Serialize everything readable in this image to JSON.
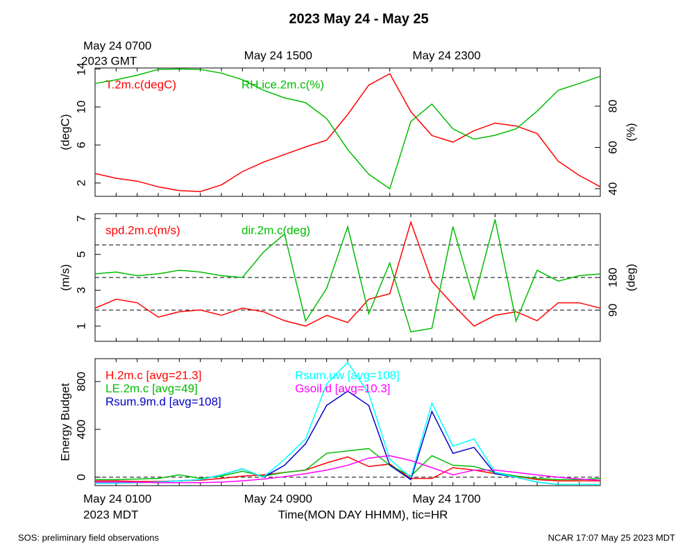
{
  "title": "2023 May 24 - May 25",
  "footer": {
    "left": "SOS: preliminary field observations",
    "right": "NCAR 17:07 May 25 2023 MDT"
  },
  "chart_data": [
    {
      "type": "line",
      "ylabel": "(degC)",
      "y2label": "(%)",
      "x": [
        "May 24 0100",
        "May 24 0200",
        "May 24 0300",
        "May 24 0400",
        "May 24 0500",
        "May 24 0600",
        "May 24 0700",
        "May 24 0800",
        "May 24 0900",
        "May 24 1000",
        "May 24 1100",
        "May 24 1200",
        "May 24 1300",
        "May 24 1400",
        "May 24 1500",
        "May 24 1600",
        "May 24 1700",
        "May 24 1800",
        "May 24 1900",
        "May 24 2000",
        "May 24 2100",
        "May 24 2200",
        "May 24 2300",
        "May 25 0000",
        "May 25 0100"
      ],
      "x2ticks": [
        {
          "value": "May 24 0100",
          "label": "May 24 0700"
        },
        {
          "value": "May 24 0900",
          "label": "May 24 1500"
        },
        {
          "value": "May 24 1700",
          "label": "May 24 2300"
        }
      ],
      "x2tick_sublabel": "2023 GMT",
      "ylim": [
        0.6,
        14.1
      ],
      "yticks": [
        2,
        6,
        10,
        14
      ],
      "y2lim": [
        36.3,
        98.5
      ],
      "y2ticks": [
        40,
        60,
        80
      ],
      "series": [
        {
          "name": "T.2m.c(degC)",
          "color": "#ff0000",
          "values": [
            3,
            2.5,
            2.2,
            1.6,
            1.2,
            1.1,
            1.8,
            3.2,
            4.2,
            5.0,
            5.8,
            6.5,
            9.2,
            12.3,
            13.5,
            9.5,
            7.0,
            6.3,
            7.5,
            8.3,
            8.0,
            7.2,
            4.3,
            2.8,
            1.6
          ]
        },
        {
          "name": "RH.ice.2m.c(%)",
          "color": "#00bb00",
          "axis": "y2",
          "values": [
            91,
            92.8,
            95,
            97.8,
            98,
            97.8,
            96,
            92.8,
            87.7,
            84,
            81.7,
            74,
            59,
            47,
            40,
            72.6,
            81,
            69,
            64,
            65.9,
            69,
            77.6,
            87.7,
            91,
            94.5
          ]
        }
      ]
    },
    {
      "type": "line",
      "ylabel": "(m/s)",
      "y2label": "(deg)",
      "x": [
        "May 24 0100",
        "May 24 0200",
        "May 24 0300",
        "May 24 0400",
        "May 24 0500",
        "May 24 0600",
        "May 24 0700",
        "May 24 0800",
        "May 24 0900",
        "May 24 1000",
        "May 24 1100",
        "May 24 1200",
        "May 24 1300",
        "May 24 1400",
        "May 24 1500",
        "May 24 1600",
        "May 24 1700",
        "May 24 1800",
        "May 24 1900",
        "May 24 2000",
        "May 24 2100",
        "May 24 2200",
        "May 24 2300",
        "May 25 0000",
        "May 25 0100"
      ],
      "ylim": [
        0.15,
        7.27
      ],
      "yticks": [
        1,
        3,
        5,
        7
      ],
      "y2lim": [
        4,
        356
      ],
      "y2ticks": [
        90,
        180
      ],
      "hlines_y2": [
        90,
        180,
        270
      ],
      "series": [
        {
          "name": "spd.2m.c(m/s)",
          "color": "#ff0000",
          "values": [
            2.0,
            2.5,
            2.3,
            1.5,
            1.8,
            1.9,
            1.6,
            2.0,
            1.8,
            1.3,
            1.0,
            1.6,
            1.2,
            2.5,
            2.8,
            6.8,
            3.5,
            2.2,
            1.0,
            1.6,
            1.8,
            1.3,
            2.3,
            2.3,
            2.0
          ]
        },
        {
          "name": "dir.2m.c(deg)",
          "color": "#00bb00",
          "axis": "y2",
          "values": [
            190,
            195,
            185,
            190,
            200,
            195,
            185,
            180,
            250,
            300,
            60,
            150,
            320,
            80,
            220,
            30,
            40,
            320,
            120,
            340,
            60,
            200,
            170,
            185,
            190
          ]
        }
      ]
    },
    {
      "type": "line",
      "ylabel": "Energy Budget",
      "xlabel": "Time(MON DAY HHMM), tic=HR",
      "x": [
        "May 24 0100",
        "May 24 0200",
        "May 24 0300",
        "May 24 0400",
        "May 24 0500",
        "May 24 0600",
        "May 24 0700",
        "May 24 0800",
        "May 24 0900",
        "May 24 1000",
        "May 24 1100",
        "May 24 1200",
        "May 24 1300",
        "May 24 1400",
        "May 24 1500",
        "May 24 1600",
        "May 24 1700",
        "May 24 1800",
        "May 24 1900",
        "May 24 2000",
        "May 24 2100",
        "May 24 2200",
        "May 24 2300",
        "May 25 0000",
        "May 25 0100"
      ],
      "xticks": [
        "May 24 0100",
        "May 24 0900",
        "May 24 1700"
      ],
      "xtick_sublabel": "2023 MDT",
      "ylim": [
        -70,
        991
      ],
      "yticks": [
        0,
        400,
        800
      ],
      "hlines": [
        0
      ],
      "series": [
        {
          "name": "H.2m.c [avg=21.3]",
          "color": "#ff0000",
          "values": [
            -30,
            -30,
            -35,
            -35,
            -30,
            -25,
            -10,
            10,
            20,
            40,
            60,
            120,
            170,
            90,
            110,
            -10,
            -10,
            80,
            60,
            30,
            10,
            -20,
            -30,
            -30,
            -30
          ]
        },
        {
          "name": "LE.2m.c [avg=49]",
          "color": "#00bb00",
          "values": [
            -20,
            -20,
            -15,
            -10,
            20,
            -10,
            10,
            50,
            10,
            40,
            60,
            200,
            220,
            240,
            100,
            10,
            180,
            100,
            90,
            40,
            10,
            -10,
            -20,
            -20,
            -10
          ]
        },
        {
          "name": "Rsum.9m.d [avg=108]",
          "color": "#0000cc",
          "values": [
            -50,
            -50,
            -45,
            -40,
            -30,
            -20,
            20,
            70,
            0,
            100,
            280,
            600,
            720,
            600,
            100,
            -20,
            550,
            200,
            250,
            30,
            0,
            -40,
            -60,
            -60,
            -60
          ]
        },
        {
          "name": "Rsum.uw [avg=108]",
          "color": "#00ffff",
          "values": [
            -50,
            -50,
            -45,
            -40,
            -30,
            -20,
            20,
            70,
            0,
            150,
            320,
            780,
            960,
            700,
            150,
            0,
            620,
            260,
            320,
            40,
            0,
            -40,
            -60,
            -60,
            -60
          ]
        },
        {
          "name": "Gsoil.d [avg=10.3]",
          "color": "#ff00ff",
          "values": [
            -40,
            -40,
            -42,
            -45,
            -45,
            -45,
            -40,
            -30,
            -15,
            5,
            30,
            60,
            100,
            160,
            180,
            140,
            80,
            20,
            60,
            60,
            40,
            20,
            0,
            -15,
            -25
          ]
        }
      ]
    }
  ]
}
